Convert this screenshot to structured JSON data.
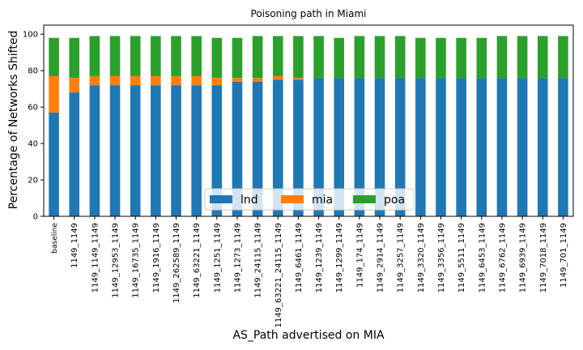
{
  "chart_data": {
    "type": "bar",
    "stacked": true,
    "title": "Poisoning path in Miami",
    "xlabel": "AS_Path advertised on MIA",
    "ylabel": "Percentage of Networks Shifted",
    "ylim": [
      0,
      100
    ],
    "yticks": [
      0,
      20,
      40,
      60,
      80,
      100
    ],
    "grid": false,
    "legend_placement": "lower-center",
    "categories": [
      "baseline",
      "1149_1149",
      "1149_1149_1149",
      "1149_12953_1149",
      "1149_16735_1149",
      "1149_1916_1149",
      "1149_262589_1149",
      "1149_63221_1149",
      "1149_1251_1149",
      "1149_1273_1149",
      "1149_24115_1149",
      "1149_63221_24115_1149",
      "1149_6461_1149",
      "1149_1239_1149",
      "1149_1299_1149",
      "1149_174_1149",
      "1149_2914_1149",
      "1149_3257_1149",
      "1149_3320_1149",
      "1149_3356_1149",
      "1149_5511_1149",
      "1149_6453_1149",
      "1149_6762_1149",
      "1149_6939_1149",
      "1149_7018_1149",
      "1149_701_1149"
    ],
    "series": [
      {
        "name": "lnd",
        "color": "#1f77b4",
        "values": [
          57,
          68,
          72,
          72,
          72,
          72,
          72,
          72,
          72,
          74,
          74,
          75,
          75,
          76,
          76,
          76,
          76,
          76,
          76,
          76,
          76,
          76,
          76,
          76,
          76,
          76
        ]
      },
      {
        "name": "mia",
        "color": "#ff7f0e",
        "values": [
          20,
          8,
          5,
          5,
          5,
          5,
          5,
          5,
          4,
          2,
          2,
          2,
          1,
          0,
          0,
          0,
          0,
          0,
          0,
          0,
          0,
          0,
          0,
          0,
          0,
          0
        ]
      },
      {
        "name": "poa",
        "color": "#2ca02c",
        "values": [
          21,
          22,
          22,
          22,
          22,
          22,
          22,
          22,
          22,
          22,
          23,
          22,
          23,
          23,
          22,
          23,
          23,
          23,
          22,
          22,
          22,
          22,
          23,
          23,
          23,
          23
        ]
      }
    ]
  }
}
